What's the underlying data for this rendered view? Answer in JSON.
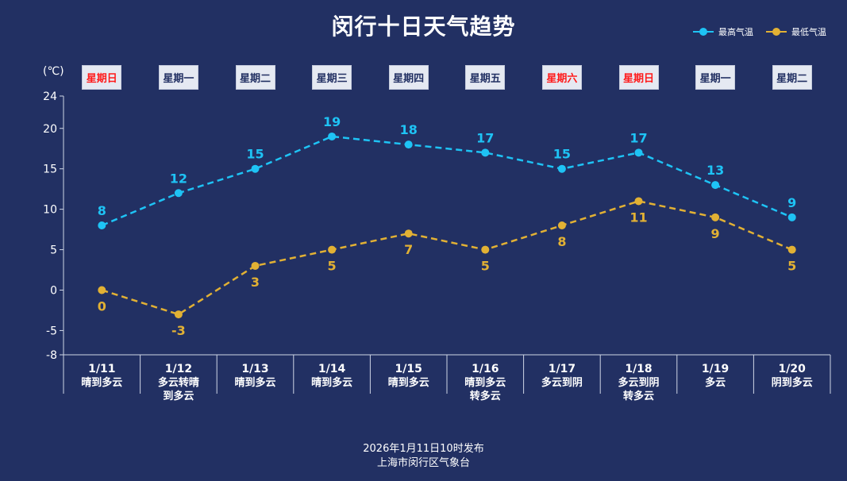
{
  "title": "闵行十日天气趋势",
  "legend": [
    {
      "label": "最高气温",
      "color": "#1ec3f5"
    },
    {
      "label": "最低气温",
      "color": "#e2b134"
    }
  ],
  "unit": "(℃)",
  "weekdays": [
    {
      "label": "星期日",
      "weekend": true
    },
    {
      "label": "星期一",
      "weekend": false
    },
    {
      "label": "星期二",
      "weekend": false
    },
    {
      "label": "星期三",
      "weekend": false
    },
    {
      "label": "星期四",
      "weekend": false
    },
    {
      "label": "星期五",
      "weekend": false
    },
    {
      "label": "星期六",
      "weekend": true
    },
    {
      "label": "星期日",
      "weekend": true
    },
    {
      "label": "星期一",
      "weekend": false
    },
    {
      "label": "星期二",
      "weekend": false
    }
  ],
  "chart_data": {
    "type": "line",
    "title": "闵行十日天气趋势",
    "ylabel": "(℃)",
    "ylim": [
      -8,
      24
    ],
    "yticks": [
      -8,
      -5,
      0,
      5,
      10,
      15,
      20,
      24
    ],
    "categories": [
      "1/11",
      "1/12",
      "1/13",
      "1/14",
      "1/15",
      "1/16",
      "1/17",
      "1/18",
      "1/19",
      "1/20"
    ],
    "weather": [
      [
        "晴到多云"
      ],
      [
        "多云转晴",
        "到多云"
      ],
      [
        "晴到多云"
      ],
      [
        "晴到多云"
      ],
      [
        "晴到多云"
      ],
      [
        "晴到多云",
        "转多云"
      ],
      [
        "多云到阴"
      ],
      [
        "多云到阴",
        "转多云"
      ],
      [
        "多云"
      ],
      [
        "阴到多云"
      ]
    ],
    "series": [
      {
        "name": "最高气温",
        "color": "#1ec3f5",
        "values": [
          8,
          12,
          15,
          19,
          18,
          17,
          15,
          17,
          13,
          9
        ]
      },
      {
        "name": "最低气温",
        "color": "#e2b134",
        "values": [
          0,
          -3,
          3,
          5,
          7,
          5,
          8,
          11,
          9,
          5
        ]
      }
    ],
    "line_style": "dashed",
    "grid": false,
    "legend_position": "top-right"
  },
  "footer": {
    "line1": "2026年1月11日10时发布",
    "line2": "上海市闵行区气象台"
  }
}
